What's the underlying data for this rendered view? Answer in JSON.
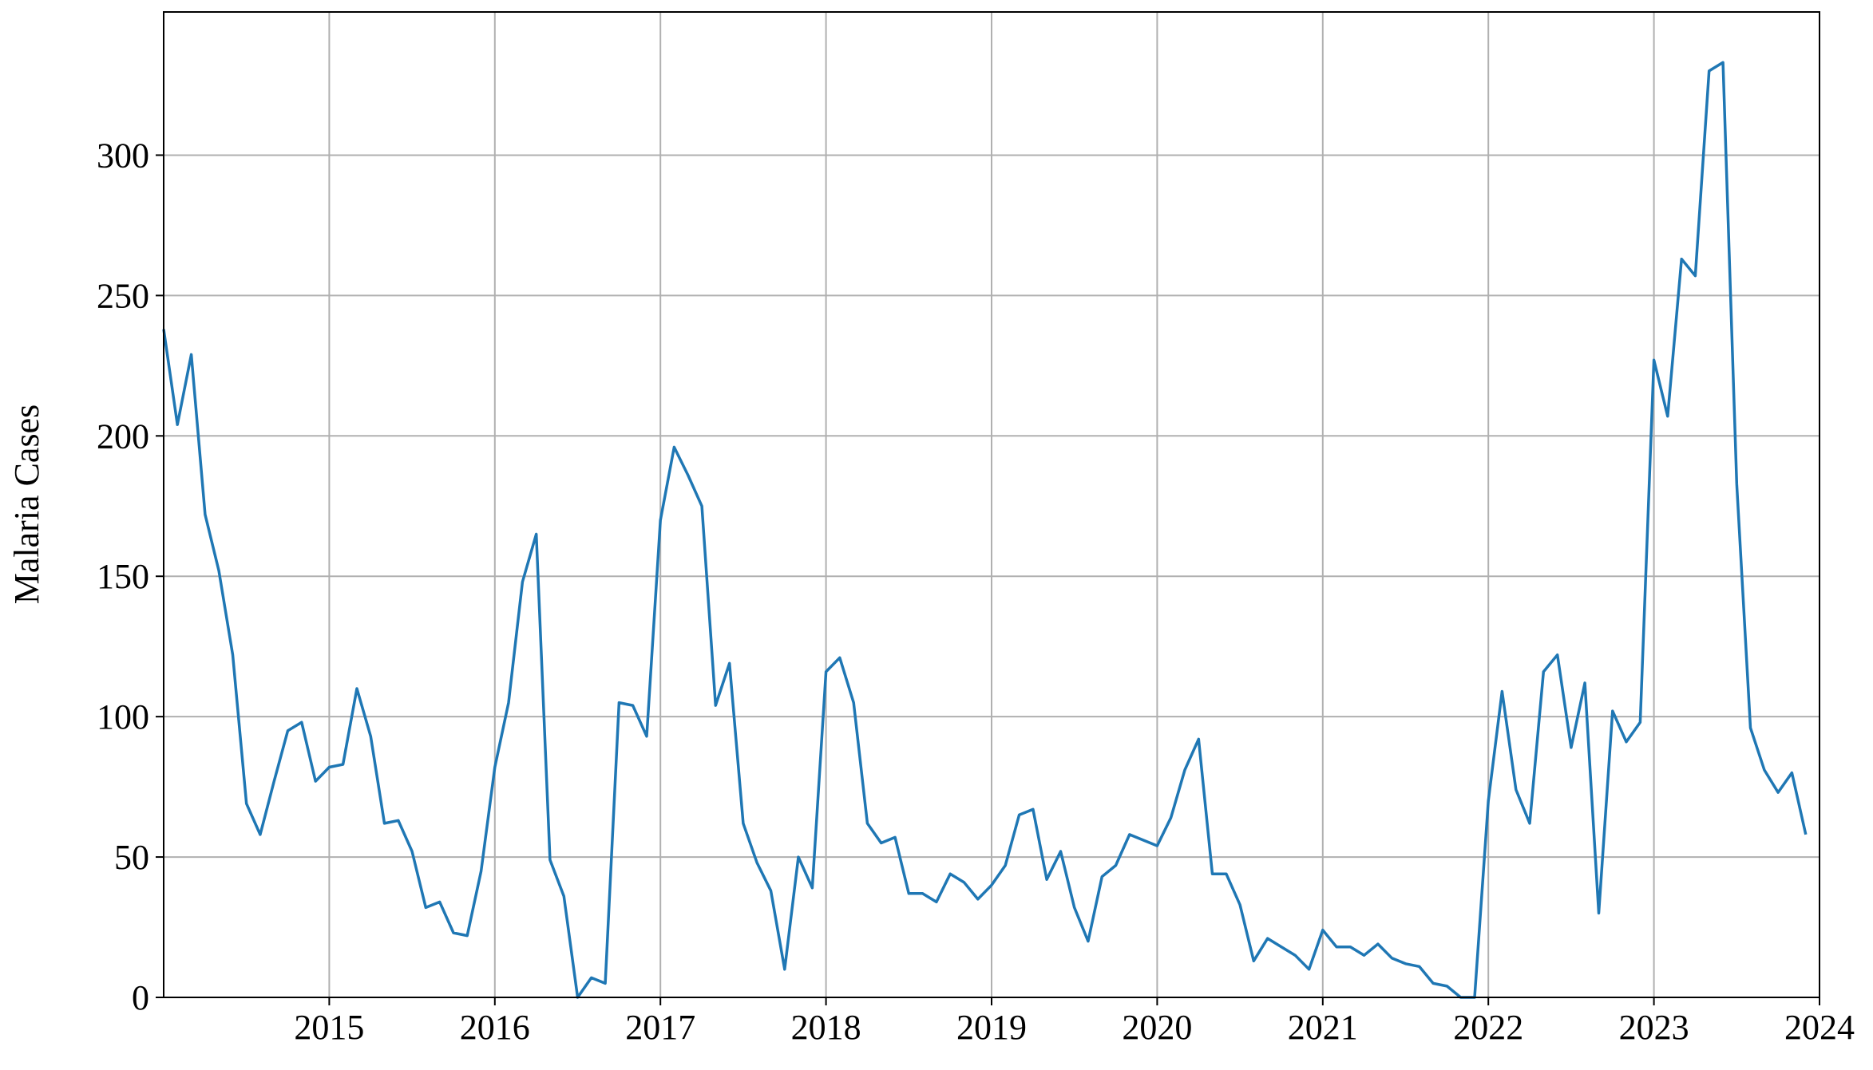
{
  "chart_data": {
    "type": "line",
    "ylabel": "Malaria Cases",
    "x": [
      2014.0,
      2014.083,
      2014.167,
      2014.25,
      2014.333,
      2014.417,
      2014.5,
      2014.583,
      2014.667,
      2014.75,
      2014.833,
      2014.917,
      2015.0,
      2015.083,
      2015.167,
      2015.25,
      2015.333,
      2015.417,
      2015.5,
      2015.583,
      2015.667,
      2015.75,
      2015.833,
      2015.917,
      2016.0,
      2016.083,
      2016.167,
      2016.25,
      2016.333,
      2016.417,
      2016.5,
      2016.583,
      2016.667,
      2016.75,
      2016.833,
      2016.917,
      2017.0,
      2017.083,
      2017.167,
      2017.25,
      2017.333,
      2017.417,
      2017.5,
      2017.583,
      2017.667,
      2017.75,
      2017.833,
      2017.917,
      2018.0,
      2018.083,
      2018.167,
      2018.25,
      2018.333,
      2018.417,
      2018.5,
      2018.583,
      2018.667,
      2018.75,
      2018.833,
      2018.917,
      2019.0,
      2019.083,
      2019.167,
      2019.25,
      2019.333,
      2019.417,
      2019.5,
      2019.583,
      2019.667,
      2019.75,
      2019.833,
      2019.917,
      2020.0,
      2020.083,
      2020.167,
      2020.25,
      2020.333,
      2020.417,
      2020.5,
      2020.583,
      2020.667,
      2020.75,
      2020.833,
      2020.917,
      2021.0,
      2021.083,
      2021.167,
      2021.25,
      2021.333,
      2021.417,
      2021.5,
      2021.583,
      2021.667,
      2021.75,
      2021.833,
      2021.917,
      2022.0,
      2022.083,
      2022.167,
      2022.25,
      2022.333,
      2022.417,
      2022.5,
      2022.583,
      2022.667,
      2022.75,
      2022.833,
      2022.917,
      2023.0,
      2023.083,
      2023.167,
      2023.25,
      2023.333,
      2023.417,
      2023.5,
      2023.583,
      2023.667,
      2023.75,
      2023.833,
      2023.917
    ],
    "series": [
      {
        "name": "Malaria Cases",
        "color": "#1f77b4",
        "values": [
          238,
          204,
          229,
          172,
          152,
          122,
          69,
          58,
          77,
          95,
          98,
          77,
          82,
          83,
          110,
          93,
          62,
          63,
          52,
          32,
          34,
          23,
          22,
          45,
          82,
          105,
          148,
          165,
          49,
          36,
          0,
          7,
          5,
          105,
          104,
          93,
          170,
          196,
          186,
          175,
          104,
          119,
          62,
          48,
          38,
          10,
          50,
          39,
          116,
          121,
          105,
          62,
          55,
          57,
          37,
          37,
          34,
          44,
          41,
          35,
          40,
          47,
          65,
          67,
          42,
          52,
          32,
          20,
          43,
          47,
          58,
          56,
          54,
          64,
          81,
          92,
          44,
          44,
          33,
          13,
          21,
          18,
          15,
          10,
          24,
          18,
          18,
          15,
          19,
          14,
          12,
          11,
          5,
          4,
          0,
          0,
          70,
          109,
          74,
          62,
          116,
          122,
          89,
          112,
          30,
          102,
          91,
          98,
          227,
          207,
          263,
          257,
          330,
          333,
          183,
          96,
          81,
          73,
          80,
          58
        ]
      }
    ],
    "xlim": [
      2014,
      2024
    ],
    "xticks": [
      2015,
      2016,
      2017,
      2018,
      2019,
      2020,
      2021,
      2022,
      2023,
      2024
    ],
    "ylim": [
      0,
      351
    ],
    "yticks": [
      0,
      50,
      100,
      150,
      200,
      250,
      300
    ],
    "grid": true
  }
}
